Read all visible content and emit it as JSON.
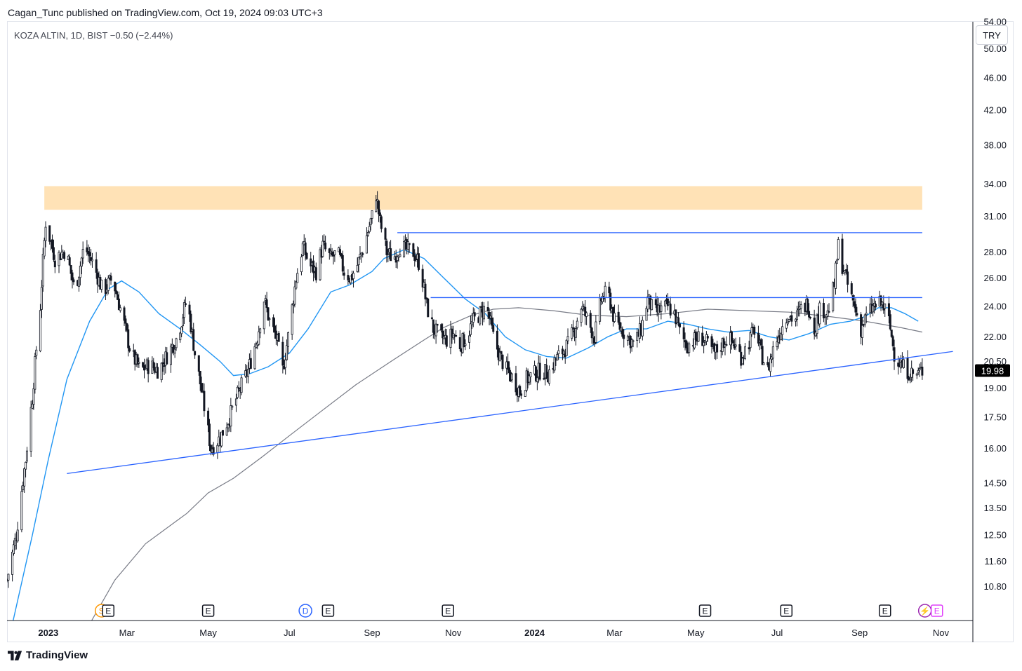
{
  "header": "Cagan_Tunc published on TradingView.com, Oct 19, 2024 09:03 UTC+3",
  "symbol_line": "KOZA ALTIN, 1D, BIST  −0.50 (−2.44%)",
  "currency": "TRY",
  "footer_brand": "TradingView",
  "colors": {
    "candle": "#131722",
    "ma_fast": "#2196f3",
    "ma_slow": "#787b86",
    "trendline": "#2962ff",
    "hline": "#2962ff",
    "zone": "#ffe0b2",
    "price_label_bg": "#000000"
  },
  "chart_data": {
    "type": "candlestick",
    "price_scale": "log",
    "ylim": [
      9.8,
      54.0
    ],
    "x_range": [
      "2022-12-01",
      "2024-11-25"
    ],
    "x_ticks": [
      {
        "label": "2023",
        "date": "2023-01-01",
        "bold": true
      },
      {
        "label": "Mar",
        "date": "2023-03-01"
      },
      {
        "label": "May",
        "date": "2023-05-01"
      },
      {
        "label": "Jul",
        "date": "2023-07-01"
      },
      {
        "label": "Sep",
        "date": "2023-09-01"
      },
      {
        "label": "Nov",
        "date": "2023-11-01"
      },
      {
        "label": "2024",
        "date": "2024-01-01",
        "bold": true
      },
      {
        "label": "Mar",
        "date": "2024-03-01"
      },
      {
        "label": "May",
        "date": "2024-05-01"
      },
      {
        "label": "Jul",
        "date": "2024-07-01"
      },
      {
        "label": "Sep",
        "date": "2024-09-01"
      },
      {
        "label": "Nov",
        "date": "2024-11-01"
      }
    ],
    "y_ticks": [
      "10.80",
      "11.60",
      "12.50",
      "13.50",
      "14.50",
      "16.00",
      "17.50",
      "19.00",
      "20.50",
      "22.00",
      "24.00",
      "26.00",
      "28.00",
      "31.00",
      "34.00",
      "38.00",
      "42.00",
      "46.00",
      "50.00",
      "54.00"
    ],
    "last_price": "19.98",
    "price_path": [
      [
        "2022-12-01",
        11.0
      ],
      [
        "2022-12-08",
        12.5
      ],
      [
        "2022-12-15",
        15.5
      ],
      [
        "2022-12-20",
        18.5
      ],
      [
        "2022-12-26",
        24.0
      ],
      [
        "2022-12-30",
        30.5
      ],
      [
        "2023-01-06",
        27.5
      ],
      [
        "2023-01-14",
        28.2
      ],
      [
        "2023-01-21",
        25.0
      ],
      [
        "2023-01-28",
        28.5
      ],
      [
        "2023-02-04",
        27.0
      ],
      [
        "2023-02-11",
        25.0
      ],
      [
        "2023-02-18",
        26.0
      ],
      [
        "2023-02-25",
        23.5
      ],
      [
        "2023-03-04",
        21.0
      ],
      [
        "2023-03-11",
        20.0
      ],
      [
        "2023-03-18",
        20.3
      ],
      [
        "2023-03-25",
        20.0
      ],
      [
        "2023-04-01",
        21.0
      ],
      [
        "2023-04-08",
        22.0
      ],
      [
        "2023-04-15",
        24.5
      ],
      [
        "2023-04-21",
        21.0
      ],
      [
        "2023-04-28",
        18.0
      ],
      [
        "2023-05-03",
        16.0
      ],
      [
        "2023-05-10",
        16.5
      ],
      [
        "2023-05-17",
        17.5
      ],
      [
        "2023-05-24",
        18.8
      ],
      [
        "2023-05-31",
        20.0
      ],
      [
        "2023-06-07",
        22.0
      ],
      [
        "2023-06-12",
        24.5
      ],
      [
        "2023-06-16",
        23.0
      ],
      [
        "2023-06-21",
        22.0
      ],
      [
        "2023-06-26",
        20.0
      ],
      [
        "2023-07-01",
        22.5
      ],
      [
        "2023-07-06",
        26.0
      ],
      [
        "2023-07-11",
        28.5
      ],
      [
        "2023-07-16",
        27.0
      ],
      [
        "2023-07-21",
        26.5
      ],
      [
        "2023-07-26",
        28.5
      ],
      [
        "2023-08-01",
        27.5
      ],
      [
        "2023-08-06",
        28.0
      ],
      [
        "2023-08-11",
        26.5
      ],
      [
        "2023-08-16",
        26.0
      ],
      [
        "2023-08-21",
        27.0
      ],
      [
        "2023-08-26",
        28.5
      ],
      [
        "2023-09-01",
        31.0
      ],
      [
        "2023-09-04",
        33.0
      ],
      [
        "2023-09-07",
        30.5
      ],
      [
        "2023-09-12",
        28.0
      ],
      [
        "2023-09-17",
        27.5
      ],
      [
        "2023-09-22",
        28.5
      ],
      [
        "2023-09-27",
        28.2
      ],
      [
        "2023-10-02",
        28.0
      ],
      [
        "2023-10-07",
        27.0
      ],
      [
        "2023-10-12",
        24.0
      ],
      [
        "2023-10-17",
        22.5
      ],
      [
        "2023-10-22",
        22.0
      ],
      [
        "2023-10-27",
        21.8
      ],
      [
        "2023-11-01",
        22.2
      ],
      [
        "2023-11-06",
        21.5
      ],
      [
        "2023-11-11",
        22.0
      ],
      [
        "2023-11-16",
        23.0
      ],
      [
        "2023-11-21",
        23.5
      ],
      [
        "2023-11-26",
        24.0
      ],
      [
        "2023-12-01",
        22.0
      ],
      [
        "2023-12-06",
        20.8
      ],
      [
        "2023-12-11",
        20.0
      ],
      [
        "2023-12-16",
        19.5
      ],
      [
        "2023-12-21",
        18.8
      ],
      [
        "2023-12-26",
        19.5
      ],
      [
        "2024-01-01",
        19.8
      ],
      [
        "2024-01-06",
        20.0
      ],
      [
        "2024-01-11",
        19.8
      ],
      [
        "2024-01-16",
        20.5
      ],
      [
        "2024-01-21",
        21.0
      ],
      [
        "2024-01-26",
        21.5
      ],
      [
        "2024-01-31",
        22.5
      ],
      [
        "2024-02-05",
        24.0
      ],
      [
        "2024-02-10",
        23.0
      ],
      [
        "2024-02-15",
        22.0
      ],
      [
        "2024-02-20",
        24.5
      ],
      [
        "2024-02-25",
        25.0
      ],
      [
        "2024-03-01",
        23.0
      ],
      [
        "2024-03-06",
        22.5
      ],
      [
        "2024-03-11",
        22.0
      ],
      [
        "2024-03-16",
        21.5
      ],
      [
        "2024-03-21",
        22.5
      ],
      [
        "2024-03-26",
        24.5
      ],
      [
        "2024-03-31",
        23.5
      ],
      [
        "2024-04-05",
        23.8
      ],
      [
        "2024-04-10",
        24.0
      ],
      [
        "2024-04-15",
        23.5
      ],
      [
        "2024-04-20",
        22.0
      ],
      [
        "2024-04-25",
        21.5
      ],
      [
        "2024-04-30",
        21.8
      ],
      [
        "2024-05-05",
        22.0
      ],
      [
        "2024-05-10",
        21.5
      ],
      [
        "2024-05-15",
        21.0
      ],
      [
        "2024-05-20",
        21.5
      ],
      [
        "2024-05-25",
        22.0
      ],
      [
        "2024-05-30",
        21.5
      ],
      [
        "2024-06-04",
        20.8
      ],
      [
        "2024-06-09",
        21.5
      ],
      [
        "2024-06-14",
        22.5
      ],
      [
        "2024-06-19",
        21.0
      ],
      [
        "2024-06-24",
        20.0
      ],
      [
        "2024-06-29",
        21.5
      ],
      [
        "2024-07-04",
        22.5
      ],
      [
        "2024-07-09",
        23.5
      ],
      [
        "2024-07-14",
        23.0
      ],
      [
        "2024-07-19",
        23.8
      ],
      [
        "2024-07-24",
        24.2
      ],
      [
        "2024-07-29",
        22.5
      ],
      [
        "2024-08-03",
        24.0
      ],
      [
        "2024-08-08",
        23.5
      ],
      [
        "2024-08-13",
        25.5
      ],
      [
        "2024-08-16",
        28.5
      ],
      [
        "2024-08-19",
        27.0
      ],
      [
        "2024-08-23",
        25.5
      ],
      [
        "2024-08-28",
        24.0
      ],
      [
        "2024-09-02",
        22.5
      ],
      [
        "2024-09-07",
        23.5
      ],
      [
        "2024-09-12",
        24.0
      ],
      [
        "2024-09-17",
        24.2
      ],
      [
        "2024-09-22",
        23.5
      ],
      [
        "2024-09-27",
        21.0
      ],
      [
        "2024-10-02",
        20.3
      ],
      [
        "2024-10-07",
        20.0
      ],
      [
        "2024-10-12",
        19.7
      ],
      [
        "2024-10-18",
        19.98
      ]
    ],
    "ma_fast_path": [
      [
        "2022-12-05",
        9.7
      ],
      [
        "2022-12-20",
        12.5
      ],
      [
        "2023-01-01",
        15.5
      ],
      [
        "2023-01-15",
        19.5
      ],
      [
        "2023-02-01",
        23.0
      ],
      [
        "2023-02-15",
        25.2
      ],
      [
        "2023-02-25",
        25.8
      ],
      [
        "2023-03-10",
        25.0
      ],
      [
        "2023-03-25",
        23.5
      ],
      [
        "2023-04-10",
        22.5
      ],
      [
        "2023-04-25",
        21.5
      ],
      [
        "2023-05-10",
        20.5
      ],
      [
        "2023-05-20",
        19.7
      ],
      [
        "2023-06-01",
        19.8
      ],
      [
        "2023-06-15",
        20.2
      ],
      [
        "2023-07-01",
        21.0
      ],
      [
        "2023-07-15",
        22.5
      ],
      [
        "2023-08-01",
        25.0
      ],
      [
        "2023-08-15",
        25.5
      ],
      [
        "2023-09-01",
        26.5
      ],
      [
        "2023-09-10",
        27.5
      ],
      [
        "2023-09-25",
        28.2
      ],
      [
        "2023-10-10",
        27.5
      ],
      [
        "2023-10-25",
        26.0
      ],
      [
        "2023-11-10",
        24.5
      ],
      [
        "2023-11-25",
        23.5
      ],
      [
        "2023-12-10",
        22.0
      ],
      [
        "2023-12-25",
        21.2
      ],
      [
        "2024-01-10",
        20.8
      ],
      [
        "2024-01-25",
        20.7
      ],
      [
        "2024-02-10",
        21.3
      ],
      [
        "2024-02-25",
        22.0
      ],
      [
        "2024-03-10",
        22.5
      ],
      [
        "2024-03-25",
        22.5
      ],
      [
        "2024-04-10",
        23.0
      ],
      [
        "2024-04-25",
        22.8
      ],
      [
        "2024-05-10",
        22.5
      ],
      [
        "2024-05-25",
        22.3
      ],
      [
        "2024-06-10",
        22.4
      ],
      [
        "2024-06-25",
        22.0
      ],
      [
        "2024-07-10",
        21.8
      ],
      [
        "2024-07-25",
        22.2
      ],
      [
        "2024-08-10",
        22.8
      ],
      [
        "2024-08-25",
        23.0
      ],
      [
        "2024-09-05",
        23.3
      ],
      [
        "2024-09-15",
        23.9
      ],
      [
        "2024-09-25",
        23.9
      ],
      [
        "2024-10-05",
        23.5
      ],
      [
        "2024-10-15",
        23.0
      ]
    ],
    "ma_slow_path": [
      [
        "2023-02-01",
        9.7
      ],
      [
        "2023-02-20",
        11.0
      ],
      [
        "2023-03-15",
        12.2
      ],
      [
        "2023-04-15",
        13.3
      ],
      [
        "2023-05-01",
        14.1
      ],
      [
        "2023-05-20",
        14.7
      ],
      [
        "2023-06-10",
        15.6
      ],
      [
        "2023-07-01",
        16.6
      ],
      [
        "2023-07-25",
        17.8
      ],
      [
        "2023-08-20",
        19.2
      ],
      [
        "2023-09-15",
        20.5
      ],
      [
        "2023-10-10",
        21.8
      ],
      [
        "2023-10-25",
        22.6
      ],
      [
        "2023-11-15",
        23.4
      ],
      [
        "2023-12-01",
        23.8
      ],
      [
        "2023-12-20",
        23.9
      ],
      [
        "2024-01-15",
        23.7
      ],
      [
        "2024-02-10",
        23.4
      ],
      [
        "2024-03-10",
        23.3
      ],
      [
        "2024-04-10",
        23.5
      ],
      [
        "2024-05-10",
        23.8
      ],
      [
        "2024-06-10",
        23.7
      ],
      [
        "2024-07-10",
        23.6
      ],
      [
        "2024-08-10",
        23.3
      ],
      [
        "2024-09-05",
        23.0
      ],
      [
        "2024-10-01",
        22.6
      ],
      [
        "2024-10-18",
        22.3
      ]
    ],
    "resistance_zone": {
      "x0": "2022-12-29",
      "x1": "2024-10-18",
      "y_low": 31.6,
      "y_high": 33.8
    },
    "horizontal_lines": [
      {
        "x0": "2023-09-20",
        "x1": "2024-10-18",
        "y": 29.6
      },
      {
        "x0": "2023-10-15",
        "x1": "2024-10-18",
        "y": 24.6
      }
    ],
    "trend_line": {
      "x0": "2023-01-15",
      "y0": 14.9,
      "x1": "2024-11-10",
      "y1": 21.1
    },
    "event_markers": [
      {
        "label": "S",
        "date": "2023-02-10",
        "color": "#ff9800",
        "shape": "circle"
      },
      {
        "label": "E",
        "date": "2023-02-15",
        "color": "#131722",
        "shape": "square"
      },
      {
        "label": "E",
        "date": "2023-05-01",
        "color": "#131722",
        "shape": "square"
      },
      {
        "label": "D",
        "date": "2023-07-13",
        "color": "#2962ff",
        "shape": "circle"
      },
      {
        "label": "E",
        "date": "2023-07-30",
        "color": "#131722",
        "shape": "square"
      },
      {
        "label": "E",
        "date": "2023-10-28",
        "color": "#131722",
        "shape": "square"
      },
      {
        "label": "E",
        "date": "2024-05-08",
        "color": "#131722",
        "shape": "square"
      },
      {
        "label": "E",
        "date": "2024-07-08",
        "color": "#131722",
        "shape": "square"
      },
      {
        "label": "E",
        "date": "2024-09-20",
        "color": "#131722",
        "shape": "square"
      },
      {
        "label": "⚡",
        "date": "2024-10-20",
        "color": "#9c27b0",
        "shape": "circle"
      },
      {
        "label": "E",
        "date": "2024-10-29",
        "color": "#e040fb",
        "shape": "square"
      }
    ]
  }
}
